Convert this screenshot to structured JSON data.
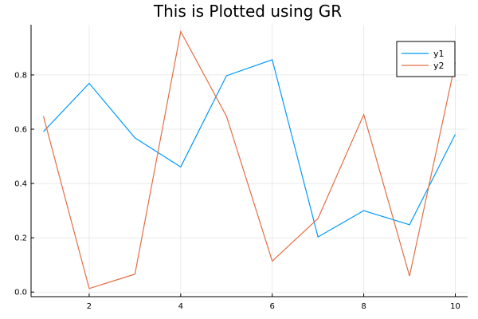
{
  "chart_data": {
    "type": "line",
    "title": "This is Plotted using GR",
    "xlabel": "",
    "ylabel": "",
    "x": [
      1,
      2,
      3,
      4,
      5,
      6,
      7,
      8,
      9,
      10
    ],
    "xlim": [
      0.73,
      10.27
    ],
    "ylim": [
      -0.017,
      0.985
    ],
    "xticks": [
      2,
      4,
      6,
      8,
      10
    ],
    "xtick_labels": [
      "2",
      "4",
      "6",
      "8",
      "10"
    ],
    "yticks": [
      0.0,
      0.2,
      0.4,
      0.6,
      0.8
    ],
    "ytick_labels": [
      "0.0",
      "0.2",
      "0.4",
      "0.6",
      "0.8"
    ],
    "grid": true,
    "legend_position": "top-right",
    "series": [
      {
        "name": "y1",
        "color": "#009af9",
        "values": [
          0.591,
          0.769,
          0.568,
          0.461,
          0.797,
          0.856,
          0.203,
          0.3,
          0.248,
          0.581
        ]
      },
      {
        "name": "y2",
        "color": "#e26f46",
        "values": [
          0.648,
          0.013,
          0.066,
          0.96,
          0.648,
          0.114,
          0.271,
          0.654,
          0.059,
          0.845
        ]
      }
    ]
  }
}
